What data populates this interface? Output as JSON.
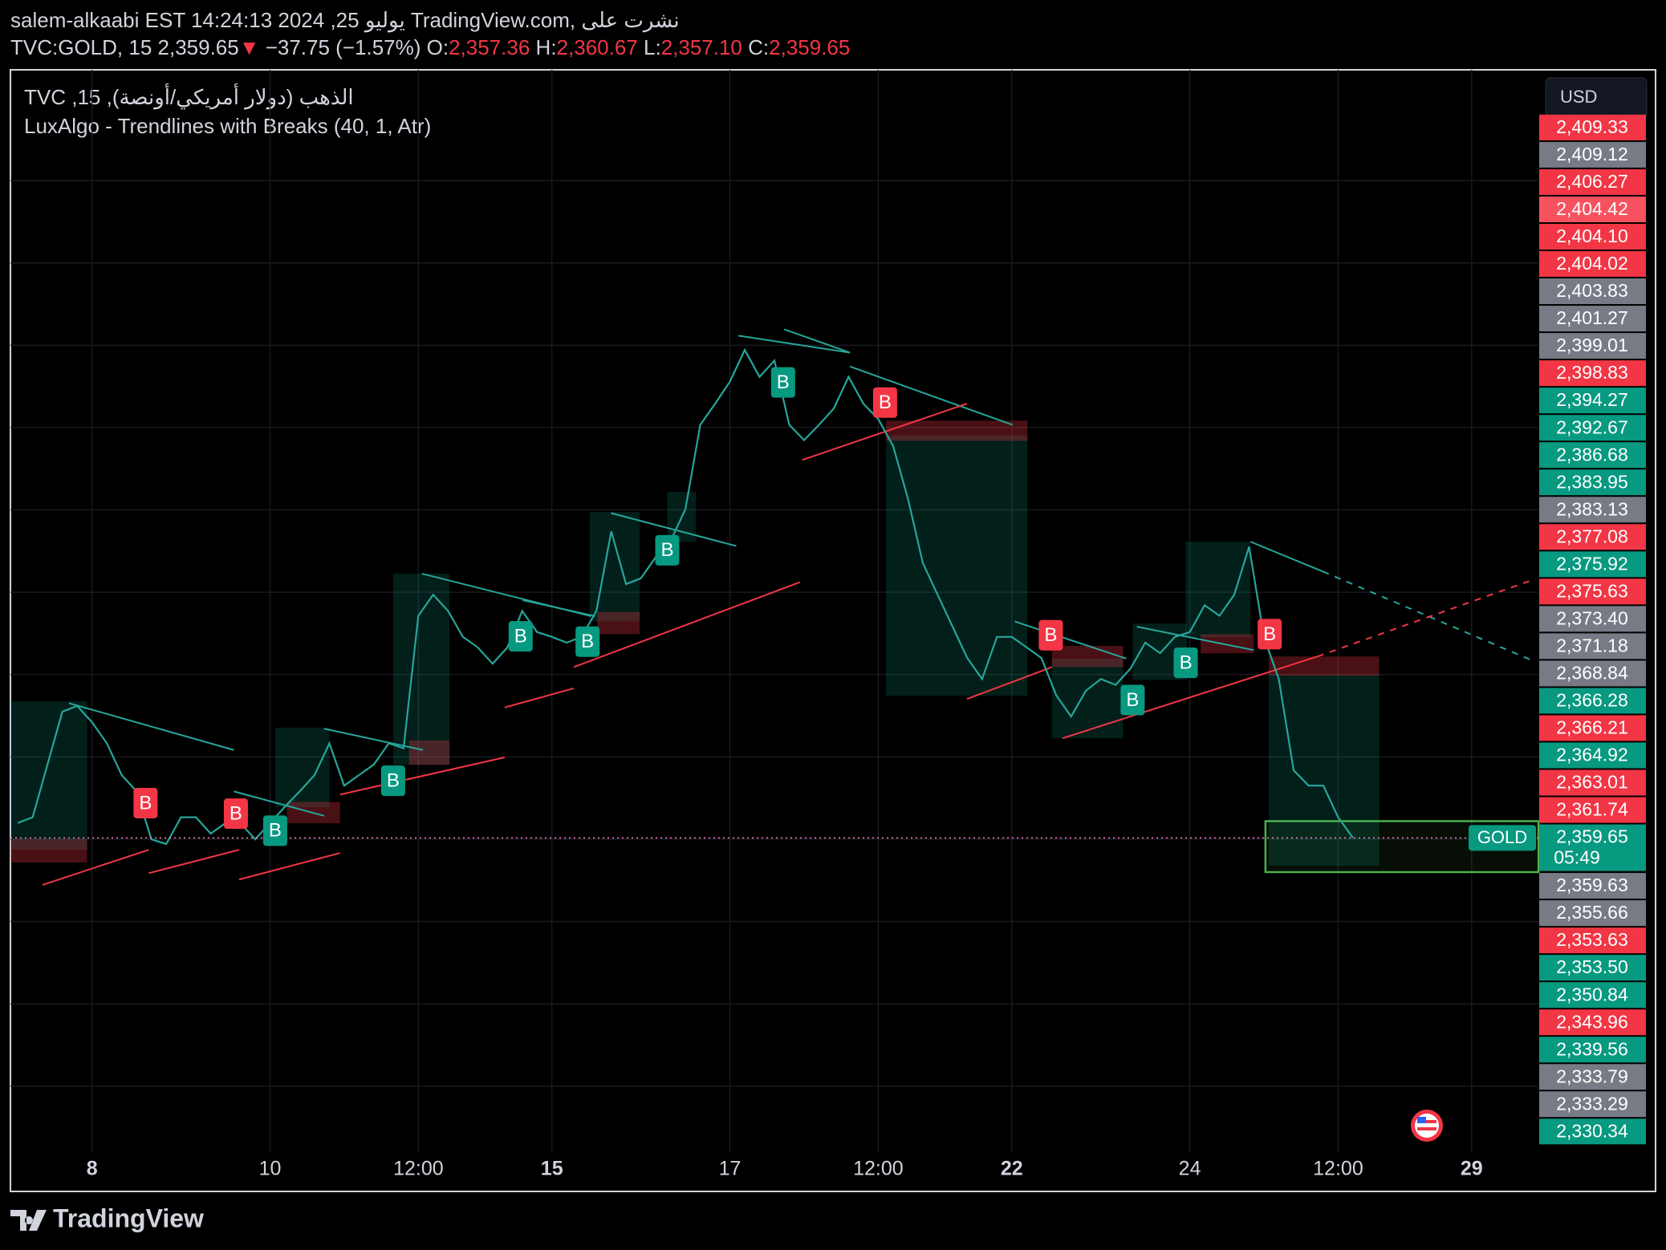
{
  "header": {
    "line1": "salem-alkaabi EST 14:24:13 2024 ,25 يوليو TradingView.com, نشرت على",
    "symbol": "TVC:GOLD, 15",
    "last": "2,359.65",
    "arrow": "▼",
    "change": "−37.75 (−1.57%)",
    "o_label": "O:",
    "o": "2,357.36",
    "h_label": "H:",
    "h": "2,360.67",
    "l_label": "L:",
    "l": "2,357.10",
    "c_label": "C:",
    "c": "2,359.65"
  },
  "chart_data": {
    "type": "line",
    "legend_title": "TVC ,15 ,الذهب (دولار أمريكي/أونصة)",
    "indicator": "LuxAlgo - Trendlines with Breaks (40, 1, Atr)",
    "currency": "USD",
    "symbol_label": "GOLD",
    "countdown": "05:49",
    "color": "#26a69a",
    "last_color": "#ff80c0",
    "categories": [
      null,
      null,
      null,
      null,
      null,
      "8",
      null,
      null,
      null,
      null,
      null,
      null,
      null,
      null,
      null,
      null,
      null,
      "10",
      null,
      null,
      null,
      null,
      null,
      null,
      null,
      null,
      null,
      "12:00",
      null,
      null,
      null,
      null,
      null,
      null,
      null,
      null,
      "15",
      null,
      null,
      null,
      null,
      null,
      null,
      null,
      null,
      null,
      null,
      null,
      "17",
      null,
      null,
      null,
      null,
      null,
      null,
      null,
      null,
      null,
      "12:00",
      null,
      null,
      null,
      null,
      null,
      null,
      null,
      null,
      "22",
      null,
      null,
      null,
      null,
      null,
      null,
      null,
      null,
      null,
      null,
      null,
      "24",
      null,
      null,
      null,
      null,
      null,
      null,
      null,
      null,
      null,
      "12:00",
      null,
      null,
      null,
      null,
      null,
      null,
      null,
      null,
      "29",
      null,
      null,
      null,
      null
    ],
    "values": [
      2361.2,
      2361.8,
      2367.3,
      2372.8,
      2373.4,
      2371.7,
      2369.5,
      2366.2,
      2364.5,
      2359.5,
      2359.0,
      2361.8,
      2361.8,
      2360.1,
      2361.2,
      2361.2,
      2359.5,
      2361.2,
      2362.9,
      2364.5,
      2366.2,
      2369.5,
      2365.1,
      2366.2,
      2367.3,
      2369.5,
      2369.0,
      2382.8,
      2385.0,
      2383.3,
      2380.6,
      2379.5,
      2377.8,
      2379.5,
      2383.3,
      2381.1,
      2380.6,
      2380.0,
      2380.6,
      2383.3,
      2391.6,
      2386.1,
      2386.7,
      2388.9,
      2390.6,
      2393.9,
      2402.7,
      2404.9,
      2407.2,
      2410.5,
      2407.7,
      2409.4,
      2402.7,
      2401.1,
      2402.7,
      2404.4,
      2407.7,
      2404.9,
      2403.3,
      2400.5,
      2395.0,
      2388.3,
      2385.0,
      2381.7,
      2378.4,
      2376.2,
      2380.6,
      2380.6,
      2379.5,
      2378.4,
      2374.5,
      2372.3,
      2375.0,
      2376.2,
      2375.6,
      2377.3,
      2380.0,
      2378.9,
      2380.6,
      2381.1,
      2383.9,
      2382.8,
      2385.0,
      2390.0,
      2380.6,
      2376.2,
      2366.7,
      2365.1,
      2365.1,
      2361.8,
      2359.65,
      null,
      null,
      null,
      null,
      null,
      null,
      null,
      null,
      null,
      null,
      null,
      null
    ],
    "ylim": [
      2326.9,
      2439.7
    ],
    "grid": true,
    "price_badges": [
      {
        "label": "2,409.33",
        "color": "#f23645"
      },
      {
        "label": "2,409.12",
        "color": "#787b86"
      },
      {
        "label": "2,406.27",
        "color": "#f23645"
      },
      {
        "label": "2,404.42",
        "color": "#f7525f"
      },
      {
        "label": "2,404.10",
        "color": "#f23645"
      },
      {
        "label": "2,404.02",
        "color": "#f23645"
      },
      {
        "label": "2,403.83",
        "color": "#787b86"
      },
      {
        "label": "2,401.27",
        "color": "#787b86"
      },
      {
        "label": "2,399.01",
        "color": "#787b86"
      },
      {
        "label": "2,398.83",
        "color": "#f23645"
      },
      {
        "label": "2,394.27",
        "color": "#089981"
      },
      {
        "label": "2,392.67",
        "color": "#089981"
      },
      {
        "label": "2,386.68",
        "color": "#089981"
      },
      {
        "label": "2,383.95",
        "color": "#089981"
      },
      {
        "label": "2,383.13",
        "color": "#787b86"
      },
      {
        "label": "2,377.08",
        "color": "#f23645"
      },
      {
        "label": "2,375.92",
        "color": "#089981"
      },
      {
        "label": "2,375.63",
        "color": "#f23645"
      },
      {
        "label": "2,373.40",
        "color": "#787b86"
      },
      {
        "label": "2,371.18",
        "color": "#787b86"
      },
      {
        "label": "2,368.84",
        "color": "#787b86"
      },
      {
        "label": "2,366.28",
        "color": "#089981"
      },
      {
        "label": "2,366.21",
        "color": "#f23645"
      },
      {
        "label": "2,364.92",
        "color": "#089981"
      },
      {
        "label": "2,363.01",
        "color": "#f23645"
      },
      {
        "label": "2,361.74",
        "color": "#f23645"
      },
      {
        "label": "2,359.65",
        "color": "#089981"
      },
      {
        "label": "2,359.63",
        "color": "#787b86"
      },
      {
        "label": "2,355.66",
        "color": "#787b86"
      },
      {
        "label": "2,353.63",
        "color": "#f23645"
      },
      {
        "label": "2,353.50",
        "color": "#089981"
      },
      {
        "label": "2,350.84",
        "color": "#089981"
      },
      {
        "label": "2,343.96",
        "color": "#f23645"
      },
      {
        "label": "2,339.56",
        "color": "#089981"
      },
      {
        "label": "2,333.79",
        "color": "#787b86"
      },
      {
        "label": "2,333.29",
        "color": "#787b86"
      },
      {
        "label": "2,330.34",
        "color": "#089981"
      }
    ],
    "break_marks": [
      {
        "text": "B",
        "color": "#089981"
      },
      {
        "text": "B",
        "color": "#089981"
      },
      {
        "text": "B",
        "color": "#089981"
      },
      {
        "text": "B",
        "color": "#089981"
      },
      {
        "text": "B",
        "color": "#089981"
      },
      {
        "text": "B",
        "color": "#089981"
      },
      {
        "text": "B",
        "color": "#089981"
      },
      {
        "text": "B",
        "color": "#089981"
      },
      {
        "text": "B",
        "color": "#f23645"
      },
      {
        "text": "B",
        "color": "#f23645"
      },
      {
        "text": "B",
        "color": "#f23645"
      },
      {
        "text": "B",
        "color": "#f23645"
      },
      {
        "text": "B",
        "color": "#f23645"
      }
    ]
  },
  "footer": {
    "logo": "TradingView"
  }
}
